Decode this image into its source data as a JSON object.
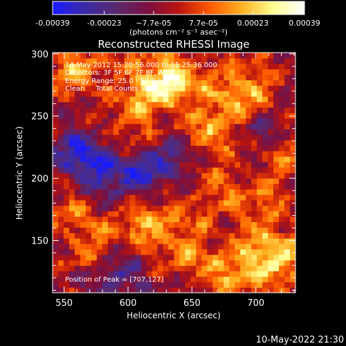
{
  "chart_data": {
    "type": "heatmap",
    "title": "Reconstructed RHESSI Image",
    "xlabel": "Heliocentric X (arcsec)",
    "ylabel": "Heliocentric Y (arcsec)",
    "xlim": [
      541,
      731
    ],
    "ylim": [
      108,
      301
    ],
    "x_ticks": [
      "550",
      "600",
      "650",
      "700"
    ],
    "y_ticks": [
      "150",
      "200",
      "250",
      "300"
    ],
    "x_tick_values": [
      550,
      600,
      650,
      700
    ],
    "y_tick_values": [
      150,
      200,
      250,
      300
    ],
    "colorbar": {
      "range": [
        -0.00039,
        0.00039
      ],
      "tick_labels": [
        "-0.00039",
        "-0.00023",
        "−7.7e-05",
        "7.7e-05",
        "0.00023",
        "0.00039"
      ],
      "tick_values": [
        -0.00039,
        -0.00023,
        -7.7e-05,
        7.7e-05,
        0.00023,
        0.00039
      ],
      "unit_label": "(photons cm⁻² s⁻¹ asec⁻²)",
      "colors": [
        "#1a1aff",
        "#3a2aa8",
        "#5a2a70",
        "#7a1040",
        "#b81410",
        "#ff5a00",
        "#ffb020",
        "#ffff90",
        "#ffffff"
      ]
    },
    "annotations": [
      "14-May-2012 15:20:56.000 to 15:25:36.000",
      "Detectors: 3F 5F 6F 7F 8F, Att 0",
      "Energy Range: 25.0 - 50.0 keV",
      "Clean     Total Counts: 4.37E+03"
    ],
    "peak_label": "Position of Peak = [707,127]",
    "peak_position": [
      707,
      127
    ],
    "bright_regions": [
      {
        "x": 715,
        "y": 135,
        "level": 1.0
      },
      {
        "x": 690,
        "y": 270,
        "level": 0.85
      },
      {
        "x": 640,
        "y": 280,
        "level": 0.8
      },
      {
        "x": 560,
        "y": 290,
        "level": 0.7
      },
      {
        "x": 615,
        "y": 275,
        "level": 0.7
      },
      {
        "x": 670,
        "y": 240,
        "level": 0.65
      },
      {
        "x": 610,
        "y": 170,
        "level": 0.65
      },
      {
        "x": 570,
        "y": 150,
        "level": 0.55
      },
      {
        "x": 660,
        "y": 190,
        "level": 0.5
      },
      {
        "x": 640,
        "y": 145,
        "level": 0.55
      },
      {
        "x": 700,
        "y": 180,
        "level": 0.45
      },
      {
        "x": 720,
        "y": 220,
        "level": 0.5
      },
      {
        "x": 600,
        "y": 240,
        "level": 0.45
      },
      {
        "x": 555,
        "y": 185,
        "level": 0.35
      },
      {
        "x": 680,
        "y": 125,
        "level": 0.6
      }
    ],
    "dark_regions": [
      {
        "x": 565,
        "y": 215,
        "level": -1.0
      },
      {
        "x": 600,
        "y": 200,
        "level": -0.8
      },
      {
        "x": 590,
        "y": 120,
        "level": -0.6
      },
      {
        "x": 700,
        "y": 240,
        "level": -0.55
      },
      {
        "x": 635,
        "y": 210,
        "level": -0.6
      }
    ]
  },
  "footer": {
    "timestamp": "10-May-2022 21:30"
  }
}
